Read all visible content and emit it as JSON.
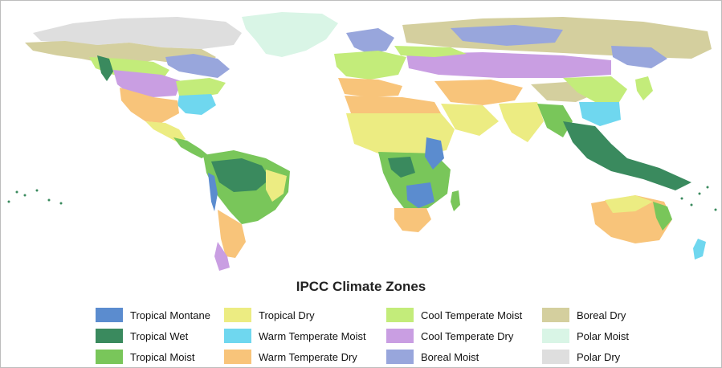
{
  "title": "IPCC Climate Zones",
  "zones": [
    {
      "label": "Tropical Montane",
      "color": "#5b8ccf"
    },
    {
      "label": "Tropical Wet",
      "color": "#3a8a5e"
    },
    {
      "label": "Tropical Moist",
      "color": "#79c65a"
    },
    {
      "label": "Tropical Dry",
      "color": "#ecec82"
    },
    {
      "label": "Warm Temperate Moist",
      "color": "#6fd7ef"
    },
    {
      "label": "Warm Temperate Dry",
      "color": "#f8c47a"
    },
    {
      "label": "Cool Temperate Moist",
      "color": "#c3ec7a"
    },
    {
      "label": "Cool Temperate Dry",
      "color": "#c99ee2"
    },
    {
      "label": "Boreal Moist",
      "color": "#98a6dc"
    },
    {
      "label": "Boreal Dry",
      "color": "#d4cf9e"
    },
    {
      "label": "Polar Moist",
      "color": "#d9f5e6"
    },
    {
      "label": "Polar Dry",
      "color": "#dedede"
    }
  ]
}
